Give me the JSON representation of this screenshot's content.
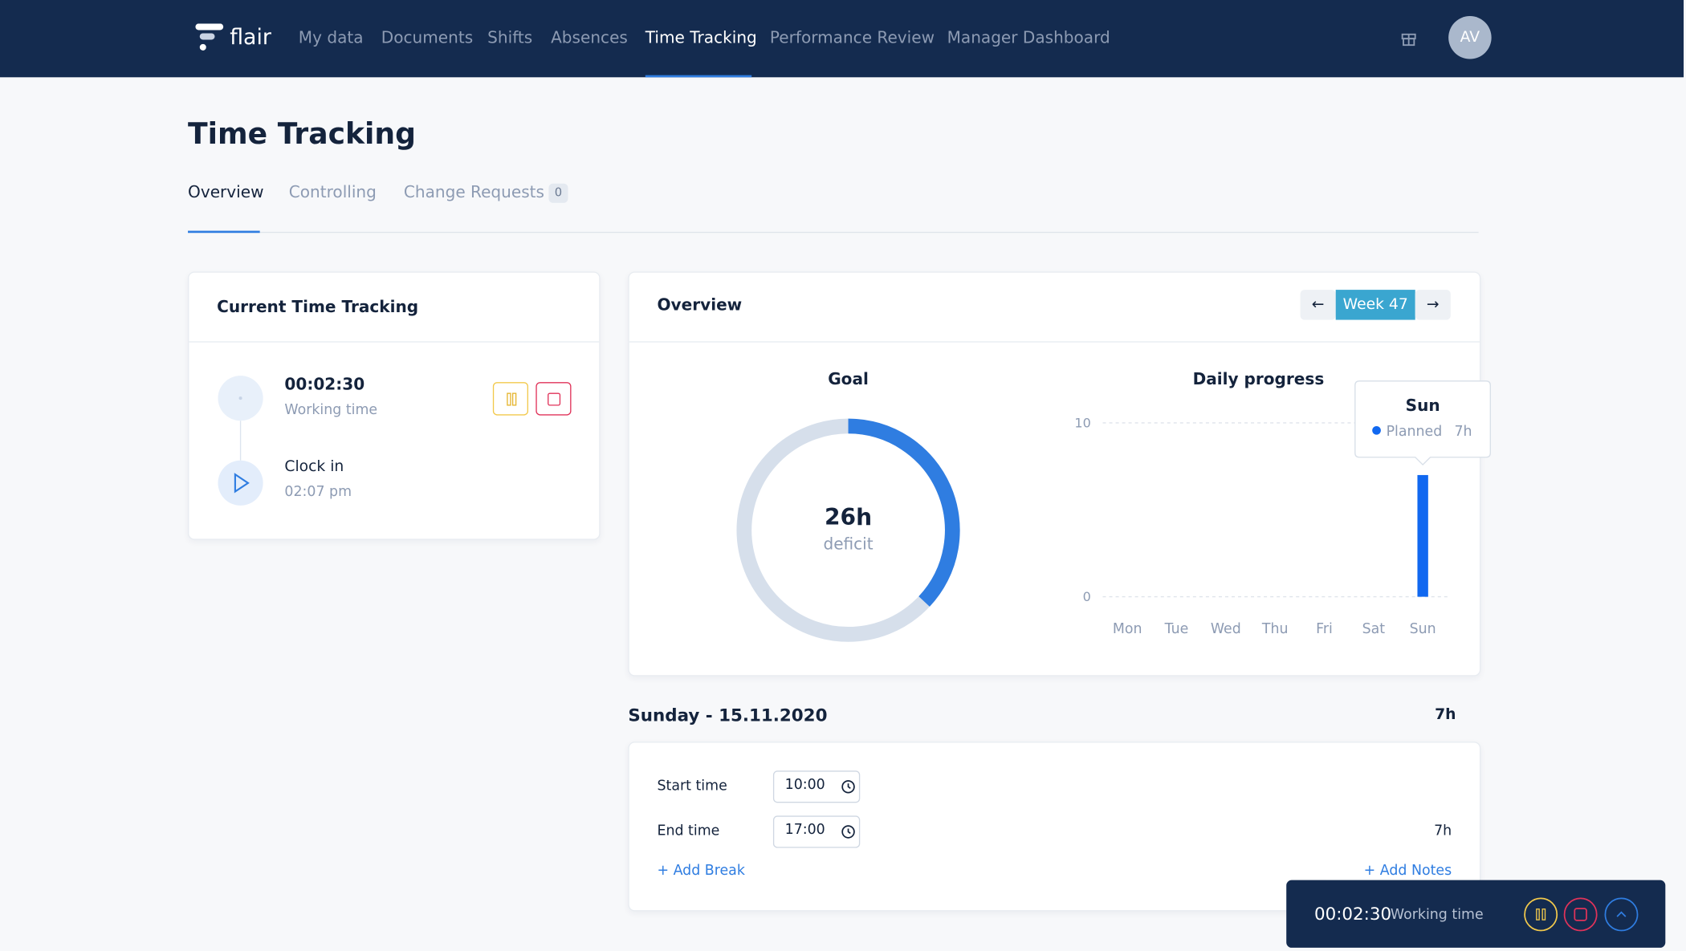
{
  "nav": {
    "logo": "flair",
    "items": [
      "My data",
      "Documents",
      "Shifts",
      "Absences",
      "Time Tracking",
      "Performance Review",
      "Manager Dashboard"
    ],
    "avatar": "AV"
  },
  "page": {
    "title": "Time Tracking",
    "tabs": [
      "Overview",
      "Controlling",
      "Change Requests"
    ],
    "change_requests_count": "0"
  },
  "current_tracking": {
    "title": "Current Time Tracking",
    "timer": "00:02:30",
    "timer_label": "Working time",
    "clock_in_label": "Clock in",
    "clock_in_time": "02:07 pm"
  },
  "overview": {
    "title": "Overview",
    "week": "Week 47"
  },
  "chart_data": [
    {
      "type": "donut",
      "title": "Goal",
      "value_label": "26h",
      "caption": "deficit",
      "values": [
        37
      ],
      "total": 100,
      "color": "#2f7de1",
      "track_color": "#d6dfeb"
    },
    {
      "type": "bar",
      "title": "Daily progress",
      "categories": [
        "Mon",
        "Tue",
        "Wed",
        "Thu",
        "Fri",
        "Sat",
        "Sun"
      ],
      "series": [
        {
          "name": "Planned",
          "color": "#1168f0",
          "values": [
            0,
            0,
            0,
            0,
            0,
            0,
            7
          ],
          "value_labels": [
            null,
            null,
            null,
            null,
            null,
            null,
            "7h"
          ]
        }
      ],
      "ylim": [
        0,
        10
      ],
      "yticks": [
        0,
        10
      ],
      "grid": true
    }
  ],
  "day": {
    "title": "Sunday - 15.11.2020",
    "total": "7h",
    "start_label": "Start time",
    "start": "10:00",
    "end_label": "End time",
    "end": "17:00",
    "duration": "7h",
    "add_break": "+ Add Break",
    "add_notes": "+ Add Notes"
  },
  "bottom_bar": {
    "timer": "00:02:30",
    "label": "Working time"
  }
}
